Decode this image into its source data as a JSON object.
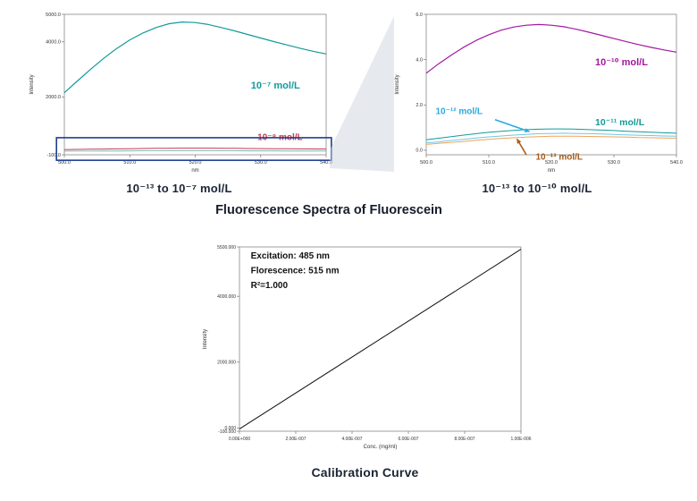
{
  "figure": {
    "title": "Fluorescence Spectra of Fluorescein",
    "left_caption": "10⁻¹³ to 10⁻⁷ mol/L",
    "right_caption": "10⁻¹³ to 10⁻¹⁰ mol/L",
    "calibration_caption": "Calibration Curve",
    "accent_colors": {
      "teal": "#149a9a",
      "red": "#c23b4e",
      "magenta": "#a318a0",
      "cyan": "#2aa9dd",
      "brown": "#a85a18",
      "highlight_box_blue": "#1e3f8f"
    }
  },
  "chart_data": [
    {
      "id": "spectra_full",
      "type": "line",
      "title": "",
      "xlabel": "nm",
      "ylabel": "Intensity",
      "xlim": [
        500,
        540
      ],
      "ylim": [
        -100,
        5000
      ],
      "margins": {
        "l": 44,
        "t": 6,
        "r": 8,
        "b": 27
      },
      "xticks": [
        {
          "v": 500,
          "label": "500.0"
        },
        {
          "v": 510,
          "label": "510.0"
        },
        {
          "v": 520,
          "label": "520.0"
        },
        {
          "v": 530,
          "label": "530.0"
        },
        {
          "v": 540,
          "label": "540.0"
        }
      ],
      "yticks": [
        {
          "v": 5000,
          "label": "5000.0"
        },
        {
          "v": 4000,
          "label": "4000.0"
        },
        {
          "v": 2000,
          "label": "2000.0"
        },
        {
          "v": -100,
          "label": "-100.0"
        }
      ],
      "series": [
        {
          "name": "10⁻⁷ mol/L",
          "color": "#149a9a",
          "width": 1.2,
          "y": [
            2150,
            2580,
            3000,
            3400,
            3760,
            4070,
            4320,
            4520,
            4660,
            4720,
            4700,
            4630,
            4520,
            4400,
            4270,
            4140,
            4010,
            3890,
            3770,
            3660,
            3560
          ]
        },
        {
          "name": "10⁻⁸ mol/L",
          "color": "#c23b4e",
          "width": 1,
          "y": [
            90,
            95,
            100,
            108,
            115,
            122,
            128,
            134,
            138,
            141,
            142,
            140,
            137,
            133,
            129,
            125,
            121,
            117,
            113,
            110,
            107
          ]
        },
        {
          "name": "lower concentrations (flat)",
          "color": "#6aa8a8",
          "width": 0.8,
          "y": [
            30,
            32,
            34,
            36,
            38,
            40,
            42,
            43,
            44,
            45,
            45,
            44,
            43,
            42,
            41,
            40,
            39,
            38,
            37,
            36,
            35
          ]
        }
      ],
      "annotations": [
        {
          "type": "text",
          "text": "10⁻⁷ mol/L",
          "x": 528.5,
          "y": 2300,
          "color": "#149a9a",
          "size": 11,
          "bold": true
        },
        {
          "type": "text",
          "text": "10⁻⁸ mol/L",
          "x": 529.5,
          "y": 430,
          "color": "#c23b4e",
          "size": 10,
          "bold": true
        },
        {
          "type": "rect",
          "x1": 498.8,
          "x2": 540.8,
          "y1": -300,
          "y2": 520,
          "color": "#1e3f8f",
          "width": 1.6
        }
      ]
    },
    {
      "id": "spectra_zoom",
      "type": "line",
      "title": "",
      "xlabel": "nm",
      "ylabel": "Intensity",
      "xlim": [
        500,
        540
      ],
      "ylim": [
        -0.2,
        6.0
      ],
      "margins": {
        "l": 40,
        "t": 6,
        "r": 8,
        "b": 27
      },
      "xticks": [
        {
          "v": 500,
          "label": "500.0"
        },
        {
          "v": 510,
          "label": "510.0"
        },
        {
          "v": 520,
          "label": "520.0"
        },
        {
          "v": 530,
          "label": "530.0"
        },
        {
          "v": 540,
          "label": "540.0"
        }
      ],
      "yticks": [
        {
          "v": 6.0,
          "label": "6.0"
        },
        {
          "v": 4.0,
          "label": "4.0"
        },
        {
          "v": 2.0,
          "label": "2.0"
        },
        {
          "v": 0.0,
          "label": "0.0"
        }
      ],
      "series": [
        {
          "name": "10⁻¹⁰ mol/L",
          "color": "#a318a0",
          "width": 1.2,
          "y": [
            3.4,
            3.82,
            4.2,
            4.55,
            4.85,
            5.1,
            5.3,
            5.44,
            5.52,
            5.55,
            5.52,
            5.45,
            5.34,
            5.21,
            5.07,
            4.93,
            4.79,
            4.66,
            4.54,
            4.43,
            4.33
          ]
        },
        {
          "name": "10⁻¹¹ mol/L",
          "color": "#149a9a",
          "width": 1,
          "y": [
            0.46,
            0.53,
            0.6,
            0.67,
            0.73,
            0.79,
            0.84,
            0.88,
            0.91,
            0.93,
            0.94,
            0.94,
            0.93,
            0.91,
            0.89,
            0.87,
            0.84,
            0.82,
            0.79,
            0.77,
            0.75
          ]
        },
        {
          "name": "10⁻¹² mol/L",
          "color": "#6cc9e4",
          "width": 1,
          "y": [
            0.32,
            0.37,
            0.43,
            0.48,
            0.54,
            0.59,
            0.63,
            0.67,
            0.7,
            0.73,
            0.74,
            0.75,
            0.74,
            0.73,
            0.72,
            0.7,
            0.68,
            0.66,
            0.65,
            0.63,
            0.62
          ]
        },
        {
          "name": "10⁻¹³ mol/L",
          "color": "#f2a25c",
          "width": 1,
          "y": [
            0.26,
            0.3,
            0.35,
            0.39,
            0.44,
            0.48,
            0.52,
            0.55,
            0.58,
            0.6,
            0.62,
            0.62,
            0.62,
            0.61,
            0.6,
            0.59,
            0.58,
            0.56,
            0.55,
            0.54,
            0.53
          ]
        }
      ],
      "annotations": [
        {
          "type": "text",
          "text": "10⁻¹⁰ mol/L",
          "x": 527,
          "y": 3.75,
          "color": "#a318a0",
          "size": 11,
          "bold": true
        },
        {
          "type": "text",
          "text": "10⁻¹¹ mol/L",
          "x": 527,
          "y": 1.1,
          "color": "#149a9a",
          "size": 10.5,
          "bold": true
        },
        {
          "type": "text",
          "text": "10⁻¹² mol/L",
          "x": 501.5,
          "y": 1.6,
          "color": "#2aa9dd",
          "size": 10,
          "bold": true
        },
        {
          "type": "arrow",
          "x1": 511,
          "y1": 1.35,
          "x2": 516.5,
          "y2": 0.82,
          "color": "#2aa9dd"
        },
        {
          "type": "text",
          "text": "10⁻¹³ mol/L",
          "x": 517.5,
          "y": -0.42,
          "color": "#a85a18",
          "size": 10,
          "bold": true
        },
        {
          "type": "arrow",
          "x1": 516,
          "y1": -0.2,
          "x2": 514.5,
          "y2": 0.5,
          "color": "#a85a18"
        }
      ]
    },
    {
      "id": "calibration",
      "type": "line",
      "title": "",
      "xlabel": "Conc. (mg/ml)",
      "ylabel": "Intensity",
      "xlim": [
        0,
        1e-06
      ],
      "ylim": [
        -100,
        5500
      ],
      "margins": {
        "l": 46,
        "t": 8,
        "r": 12,
        "b": 30
      },
      "tick_font": 5,
      "xticks": [
        {
          "v": 0,
          "label": "0.00E+000"
        },
        {
          "v": 2e-07,
          "label": "2.00E-007"
        },
        {
          "v": 4e-07,
          "label": "4.00E-007"
        },
        {
          "v": 6e-07,
          "label": "6.00E-007"
        },
        {
          "v": 8e-07,
          "label": "8.00E-007"
        },
        {
          "v": 1e-06,
          "label": "1.00E-006"
        }
      ],
      "yticks": [
        {
          "v": 5500,
          "label": "5500.000"
        },
        {
          "v": 4000,
          "label": "4000.000"
        },
        {
          "v": 2000,
          "label": "2000.000"
        },
        {
          "v": 0,
          "label": "0.000"
        },
        {
          "v": -100,
          "label": "-100.000"
        }
      ],
      "series": [
        {
          "name": "calibration line",
          "color": "#111111",
          "width": 1,
          "y": [
            -30,
            5430
          ]
        }
      ],
      "annotations": [
        {
          "type": "text",
          "text": "Excitation: 485 nm",
          "x": 4e-08,
          "y": 5150,
          "color": "#111111",
          "size": 10,
          "bold": true
        },
        {
          "type": "text",
          "text": "Florescence: 515 nm",
          "x": 4e-08,
          "y": 4700,
          "color": "#111111",
          "size": 10,
          "bold": true
        },
        {
          "type": "text",
          "text": "R²=1.000",
          "x": 4e-08,
          "y": 4250,
          "color": "#111111",
          "size": 10,
          "bold": true
        }
      ]
    }
  ]
}
